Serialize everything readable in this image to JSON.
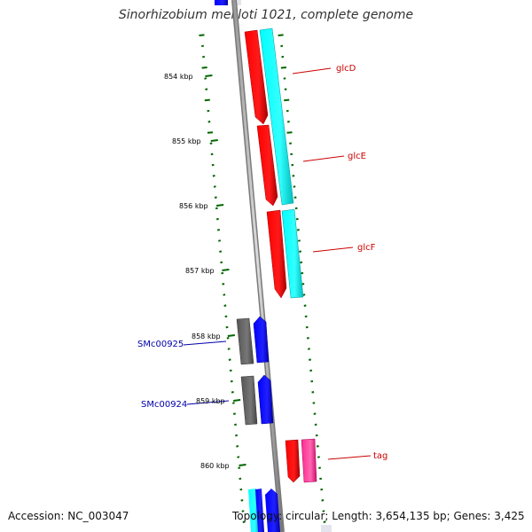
{
  "title": "Sinorhizobium meliloti 1021, complete genome",
  "footer": {
    "accession": "Accession: NC_003047",
    "topology": "Topology: circular; Length: 3,654,135 bp; Genes: 3,425"
  },
  "ruler": {
    "unit": "kbp",
    "ticks": [
      "854 kbp",
      "855 kbp",
      "856 kbp",
      "857 kbp",
      "858 kbp",
      "859 kbp",
      "860 kbp"
    ]
  },
  "genes": [
    {
      "label": "glcD",
      "color": "#cc0000"
    },
    {
      "label": "glcE",
      "color": "#cc0000"
    },
    {
      "label": "glcF",
      "color": "#cc0000"
    },
    {
      "label": "SMc00925",
      "color": "#0000aa"
    },
    {
      "label": "SMc00924",
      "color": "#0000aa"
    },
    {
      "label": "tag",
      "color": "#cc0000"
    }
  ],
  "colors": {
    "cds_red": "#ff0000",
    "cds_cyan": "#00ffff",
    "cds_blue": "#0000ff",
    "cds_gray": "#666666",
    "cds_pink": "#ff3399",
    "backbone": "#888888",
    "ruler_green": "#006600"
  }
}
